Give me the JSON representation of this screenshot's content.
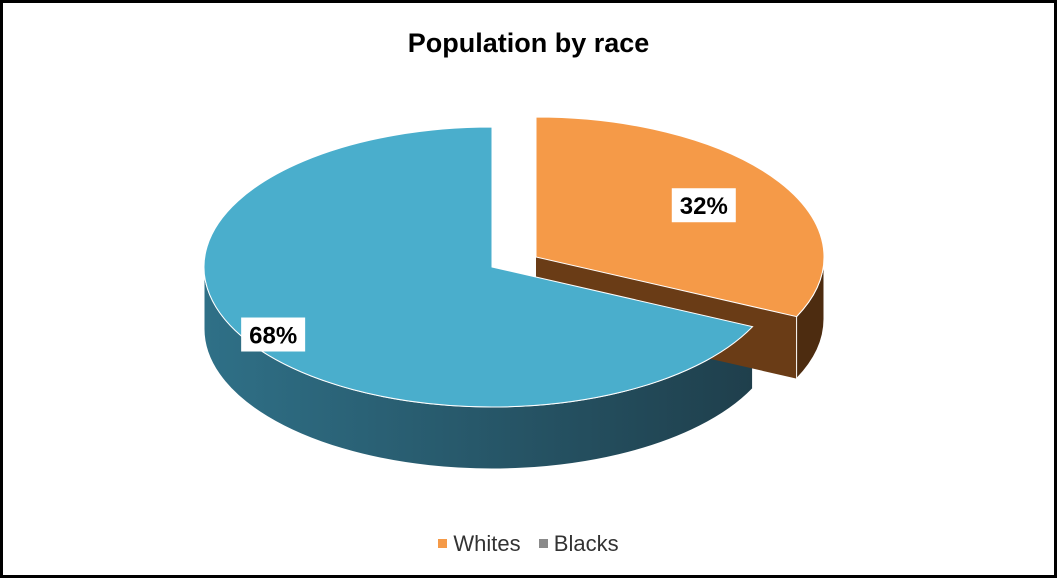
{
  "chart_data": {
    "type": "pie",
    "title": "Population by race",
    "slices": [
      {
        "name": "Whites",
        "label": "32%",
        "value": 32,
        "color": "#f59a48",
        "side_color": "#6a3c16",
        "exploded": true
      },
      {
        "name": "Blacks",
        "label": "68%",
        "value": 68,
        "color": "#4aaecc",
        "side_color": "#2f7087",
        "exploded": false
      }
    ],
    "legend_position": "bottom",
    "legend_swatch_colors": [
      "#f59a48",
      "#8a8a8a"
    ],
    "style": "3d-exploded"
  }
}
